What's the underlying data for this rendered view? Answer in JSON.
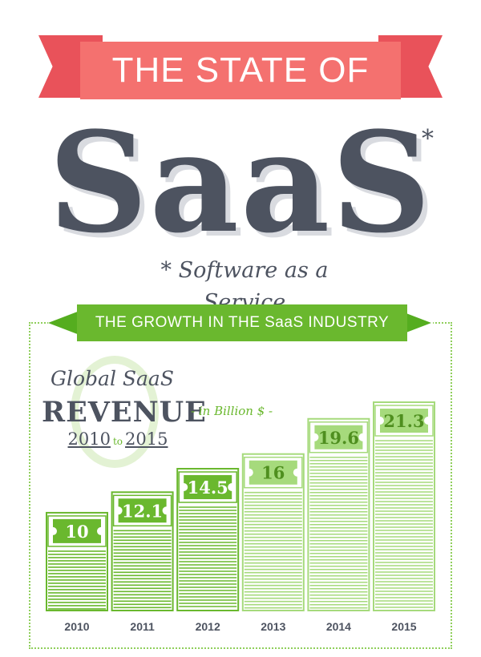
{
  "header": {
    "ribbon_text": "THE STATE OF",
    "title": "SaaS",
    "asterisk": "*",
    "subtitle": "* Software as a Service"
  },
  "banner": {
    "text": "THE GROWTH IN THE SaaS INDUSTRY"
  },
  "badge": {
    "line1": "Global SaaS",
    "line2": "REVENUE",
    "unit": "- in Billion $ -",
    "year_from": "2010",
    "to": "to",
    "year_to": "2015"
  },
  "colors": {
    "ribbon": "#f4716f",
    "title": "#4d5360",
    "green_dark": "#6ab82e",
    "green_light": "#a6da7c"
  },
  "chart_data": {
    "type": "bar",
    "categories": [
      "2010",
      "2011",
      "2012",
      "2013",
      "2014",
      "2015"
    ],
    "values": [
      10,
      12.1,
      14.5,
      16,
      19.6,
      21.3
    ],
    "value_labels": [
      "10",
      "12.1",
      "14.5",
      "16",
      "19.6",
      "21.3"
    ],
    "title": "Global SaaS REVENUE 2010 to 2015",
    "ylabel": "- in Billion $ -",
    "ylim": [
      0,
      21.3
    ],
    "grid": false
  }
}
